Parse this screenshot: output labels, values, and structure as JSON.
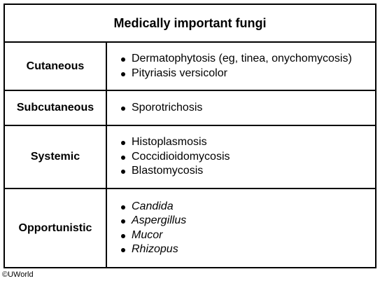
{
  "table": {
    "title": "Medically important fungi",
    "rows": [
      {
        "category": "Cutaneous",
        "items": [
          "Dermatophytosis (eg, tinea, onychomycosis)",
          "Pityriasis versicolor"
        ]
      },
      {
        "category": "Subcutaneous",
        "items": [
          "Sporotrichosis"
        ]
      },
      {
        "category": "Systemic",
        "items": [
          "Histoplasmosis",
          "Coccidioidomycosis",
          "Blastomycosis"
        ]
      },
      {
        "category": "Opportunistic",
        "items": [
          "Candida",
          "Aspergillus",
          "Mucor",
          "Rhizopus"
        ]
      }
    ]
  },
  "footer": {
    "copyright": "©UWorld"
  }
}
